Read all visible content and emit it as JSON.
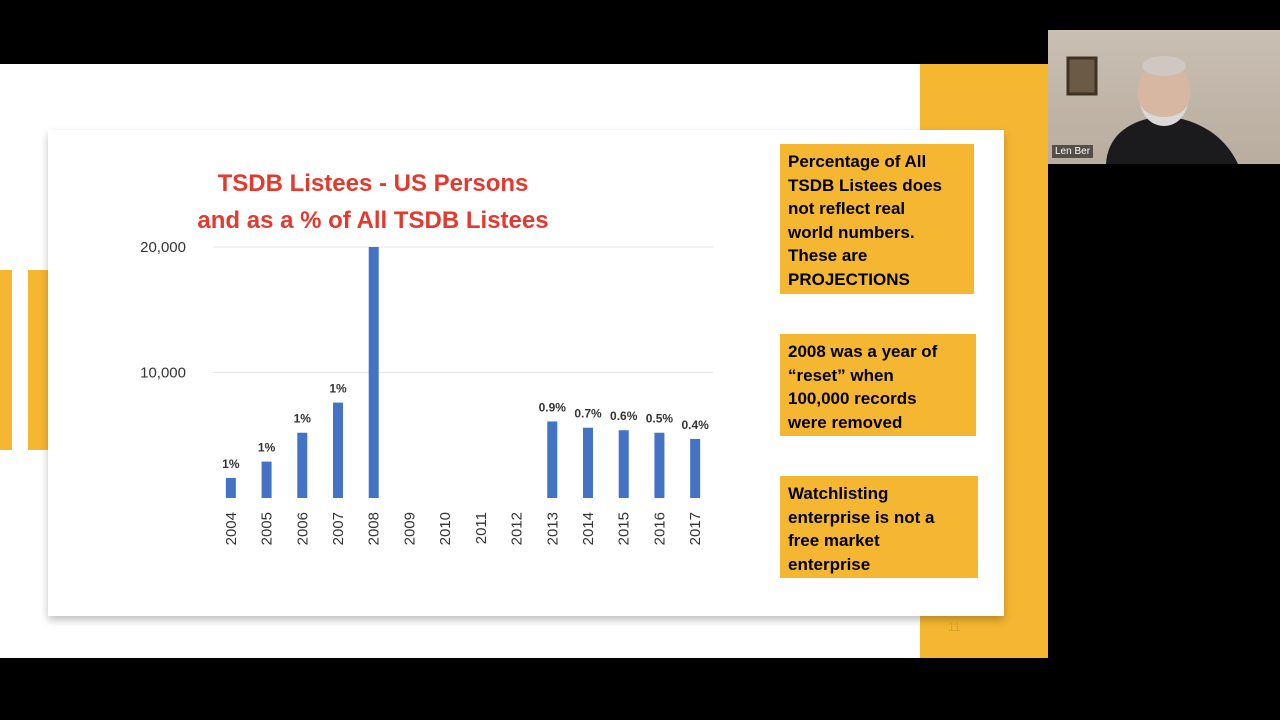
{
  "slide": {
    "title_line1": "TSDB Listees -  US Persons",
    "title_line2": "and as a % of All TSDB Listees",
    "notes": [
      [
        "Percentage of All",
        "TSDB Listees does",
        "not reflect real",
        "world numbers.",
        "These are",
        "PROJECTIONS"
      ],
      [
        "2008 was a year of",
        "“reset” when",
        "100,000 records",
        "were removed"
      ],
      [
        "Watchlisting",
        "enterprise is not a",
        "free market",
        "enterprise"
      ]
    ],
    "slide_number": "11"
  },
  "webcam": {
    "name": "Len Ber"
  },
  "colors": {
    "bar": "#4472c4",
    "accent": "#f5b731",
    "title": "#e23a2e"
  },
  "chart_data": {
    "type": "bar",
    "categories": [
      "2004",
      "2005",
      "2006",
      "2007",
      "2008",
      "2009",
      "2010",
      "2011",
      "2012",
      "2013",
      "2014",
      "2015",
      "2016",
      "2017"
    ],
    "values": [
      1600,
      2900,
      5200,
      7600,
      20000,
      0,
      0,
      0,
      0,
      6100,
      5600,
      5400,
      5200,
      4700
    ],
    "data_labels": [
      "1%",
      "1%",
      "1%",
      "1%",
      "",
      "",
      "",
      "",
      "",
      "0.9%",
      "0.7%",
      "0.6%",
      "0.5%",
      "0.4%"
    ],
    "y_ticks": [
      {
        "value": 0,
        "label": ""
      },
      {
        "value": 10000,
        "label": "10,000"
      },
      {
        "value": 20000,
        "label": "20,000"
      }
    ],
    "ylim": [
      0,
      20000
    ],
    "grid": true,
    "legend": "none"
  }
}
